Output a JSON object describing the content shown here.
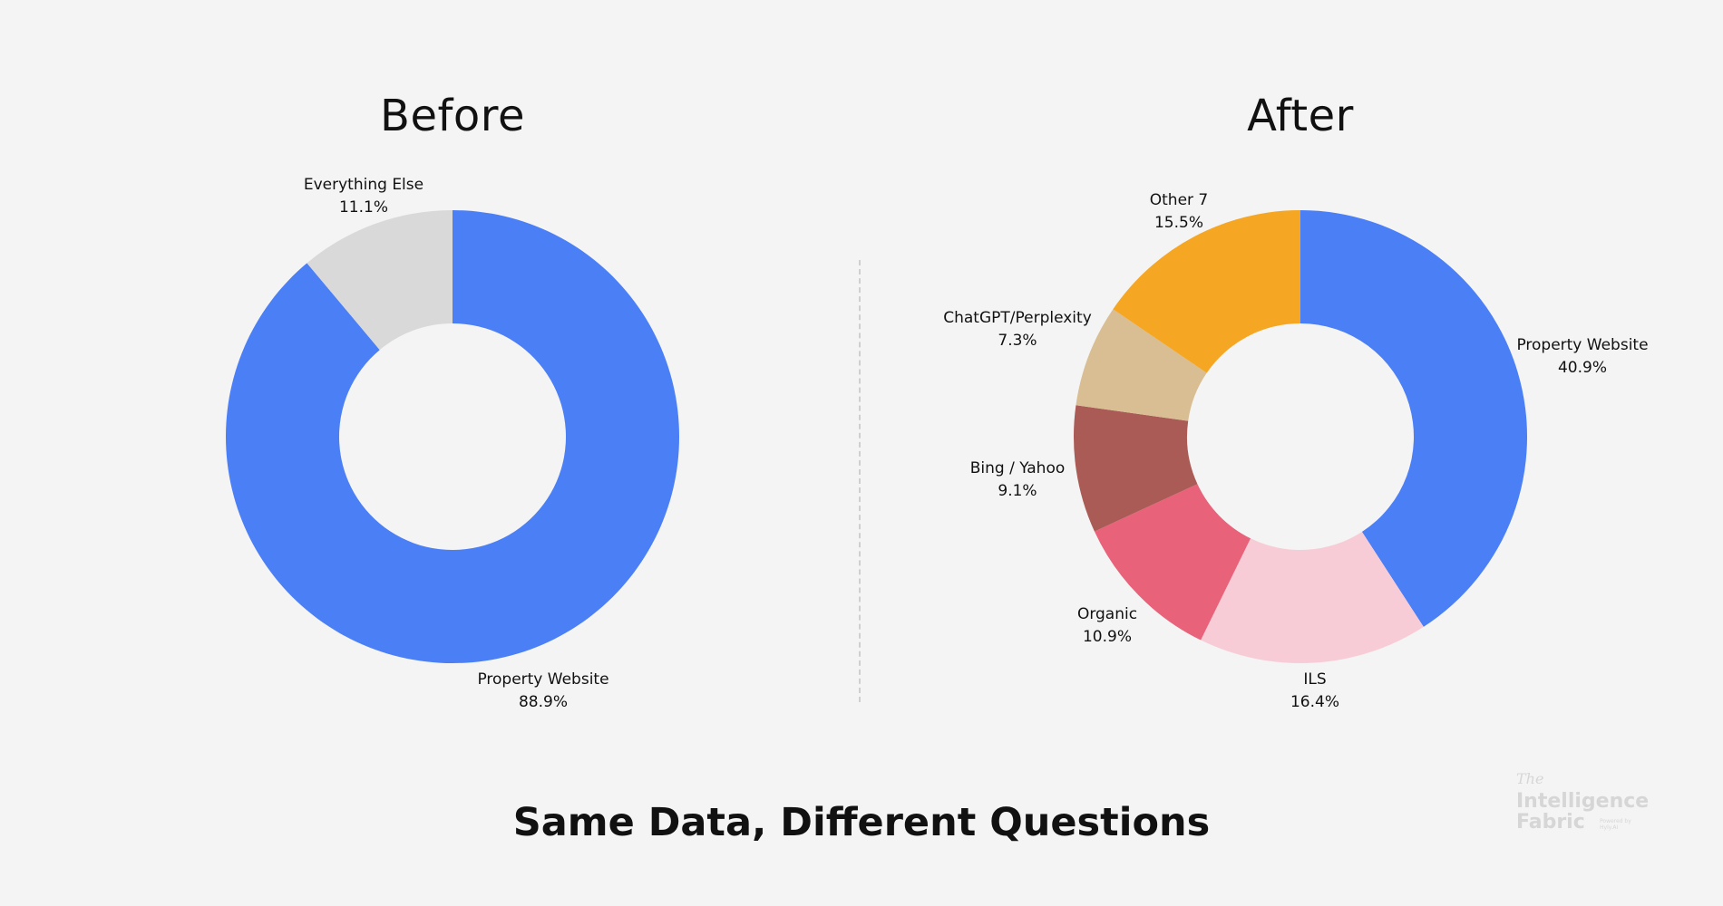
{
  "chart_data": [
    {
      "type": "pie",
      "title": "Before",
      "slices": [
        {
          "label": "Property Website",
          "value": 88.9,
          "value_label": "88.9%",
          "color": "#4b7ff6"
        },
        {
          "label": "Everything Else",
          "value": 11.1,
          "value_label": "11.1%",
          "color": "#d9d9d9"
        }
      ]
    },
    {
      "type": "pie",
      "title": "After",
      "slices": [
        {
          "label": "Property Website",
          "value": 40.9,
          "value_label": "40.9%",
          "color": "#4b7ff6"
        },
        {
          "label": "ILS",
          "value": 16.4,
          "value_label": "16.4%",
          "color": "#f8ccd6"
        },
        {
          "label": "Organic",
          "value": 10.9,
          "value_label": "10.9%",
          "color": "#e8627a"
        },
        {
          "label": "Bing / Yahoo",
          "value": 9.1,
          "value_label": "9.1%",
          "color": "#aa5b56"
        },
        {
          "label": "ChatGPT/Perplexity",
          "value": 7.3,
          "value_label": "7.3%",
          "color": "#d8be92"
        },
        {
          "label": "Other 7",
          "value": 15.5,
          "value_label": "15.5%",
          "color": "#f5a623"
        }
      ]
    }
  ],
  "footer_title": "Same Data, Different Questions",
  "logo": {
    "line1": "The",
    "line2": "Intelligence",
    "line3": "Fabric",
    "tagline": "Powered by Hyly.AI"
  }
}
